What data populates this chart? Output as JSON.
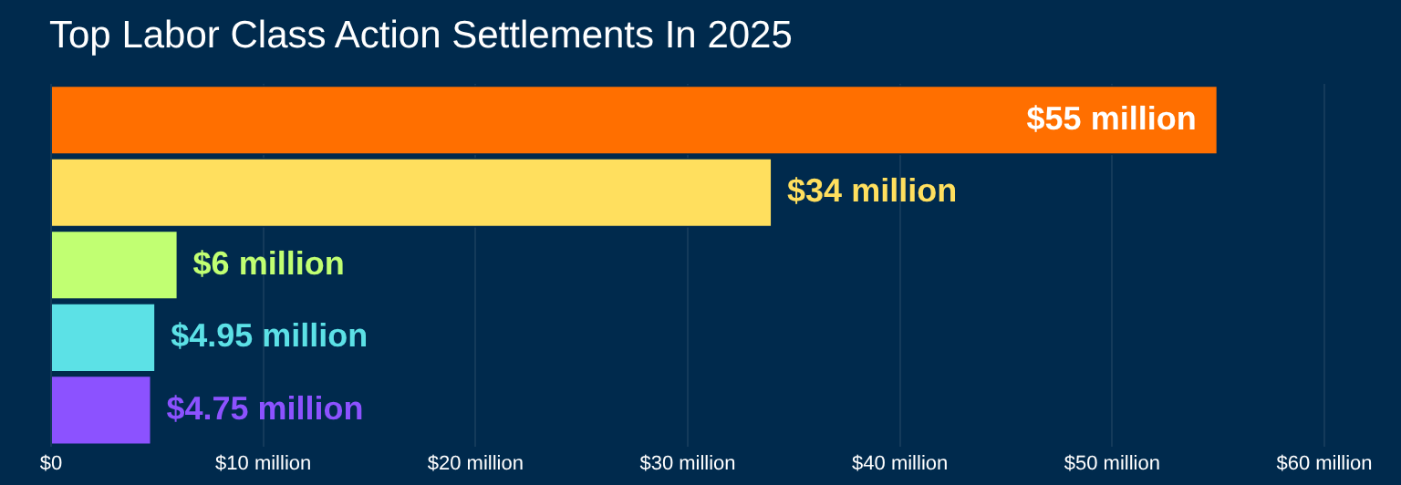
{
  "chart_data": {
    "type": "bar",
    "orientation": "horizontal",
    "title": "Top Labor Class Action Settlements In 2025",
    "categories": [
      null,
      null,
      null,
      null,
      null
    ],
    "values": [
      55,
      34,
      6,
      4.95,
      4.75
    ],
    "colors": [
      "#ff6f00",
      "#ffdf5e",
      "#c1ff72",
      "#5ce1e6",
      "#8c52ff"
    ],
    "value_labels": [
      "$55 million",
      "$34 million",
      "$6 million",
      "$4.95 million",
      "$4.75 million"
    ],
    "xlim": [
      0,
      60
    ],
    "xticks": [
      {
        "value": 0,
        "label": "$0"
      },
      {
        "value": 10,
        "label": "$10 million"
      },
      {
        "value": 20,
        "label": "$20 million"
      },
      {
        "value": 30,
        "label": "$30 million"
      },
      {
        "value": 40,
        "label": "$40 million"
      },
      {
        "value": 50,
        "label": "$50 million"
      },
      {
        "value": 60,
        "label": "$60 million"
      }
    ],
    "grid": "x",
    "tick_labels": "x",
    "legend": false
  }
}
